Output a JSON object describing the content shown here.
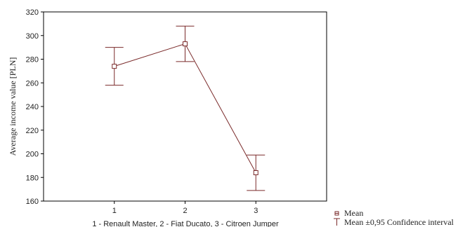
{
  "chart_data": {
    "type": "line",
    "xlabel": "1 - Renault Master, 2 - Fiat Ducato, 3 - Citroen Jumper",
    "ylabel": "Average income value [PLN]",
    "x": [
      1,
      2,
      3
    ],
    "x_tick_labels": [
      "1",
      "2",
      "3"
    ],
    "xlim": [
      0,
      4
    ],
    "ylim": [
      160,
      320
    ],
    "y_ticks": [
      160,
      180,
      200,
      220,
      240,
      260,
      280,
      300,
      320
    ],
    "grid": false,
    "legend_position": "bottom-right, outside plot",
    "series": [
      {
        "name": "Mean",
        "values": [
          274,
          293,
          184
        ],
        "ci_lower": [
          258,
          278,
          169
        ],
        "ci_upper": [
          290,
          308,
          199
        ]
      }
    ],
    "legend": [
      {
        "symbol": "square-marker",
        "label": "Mean"
      },
      {
        "symbol": "error-bar",
        "label": "Mean ±0,95 Confidence interval"
      }
    ],
    "colors": {
      "series": "#7a2a2a",
      "axis": "#000000"
    }
  }
}
